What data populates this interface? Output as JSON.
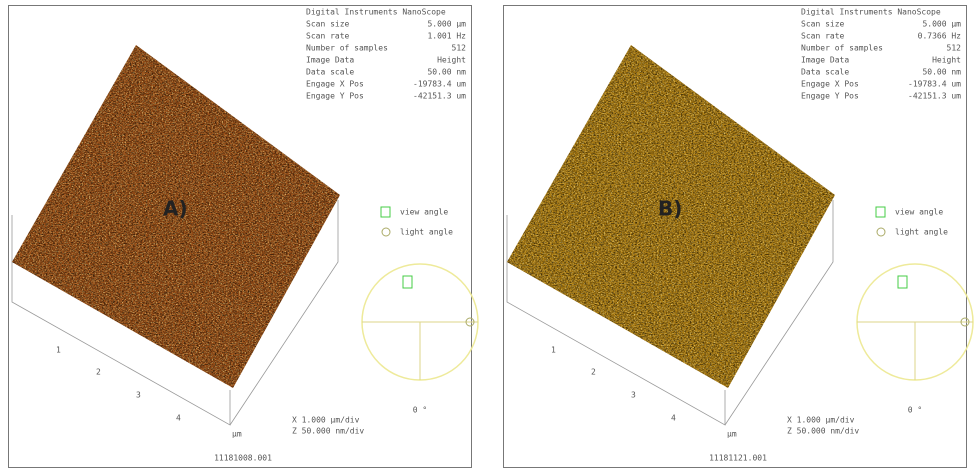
{
  "panels": [
    {
      "label": "A)",
      "color": "#9c4f17",
      "file": "11181008.001",
      "header": [
        {
          "key": "Digital Instruments NanoScope",
          "value": ""
        },
        {
          "key": "Scan size",
          "value": "5.000 µm"
        },
        {
          "key": "Scan rate",
          "value": "1.001 Hz"
        },
        {
          "key": "Number of samples",
          "value": "512"
        },
        {
          "key": "Image Data",
          "value": "Height"
        },
        {
          "key": "Data scale",
          "value": "50.00 nm"
        },
        {
          "key": "Engage X Pos",
          "value": "-19783.4 um"
        },
        {
          "key": "Engage Y Pos",
          "value": "-42151.3 um"
        }
      ],
      "legend": [
        "view angle",
        "light angle"
      ],
      "angle": "0 °",
      "ticks": [
        "1",
        "2",
        "3",
        "4",
        "µm"
      ],
      "scale": [
        "X 1.000 µm/div",
        "Z 50.000 nm/div"
      ]
    },
    {
      "label": "B)",
      "color": "#b07f12",
      "file": "11181121.001",
      "header": [
        {
          "key": "Digital Instruments NanoScope",
          "value": ""
        },
        {
          "key": "Scan size",
          "value": "5.000 µm"
        },
        {
          "key": "Scan rate",
          "value": "0.7366 Hz"
        },
        {
          "key": "Number of samples",
          "value": "512"
        },
        {
          "key": "Image Data",
          "value": "Height"
        },
        {
          "key": "Data scale",
          "value": "50.00 nm"
        },
        {
          "key": "Engage X Pos",
          "value": "-19783.4 um"
        },
        {
          "key": "Engage Y Pos",
          "value": "-42151.3 um"
        }
      ],
      "legend": [
        "view angle",
        "light angle"
      ],
      "angle": "0 °",
      "ticks": [
        "1",
        "2",
        "3",
        "4",
        "µm"
      ],
      "scale": [
        "X 1.000 µm/div",
        "Z 50.000 nm/div"
      ]
    }
  ]
}
